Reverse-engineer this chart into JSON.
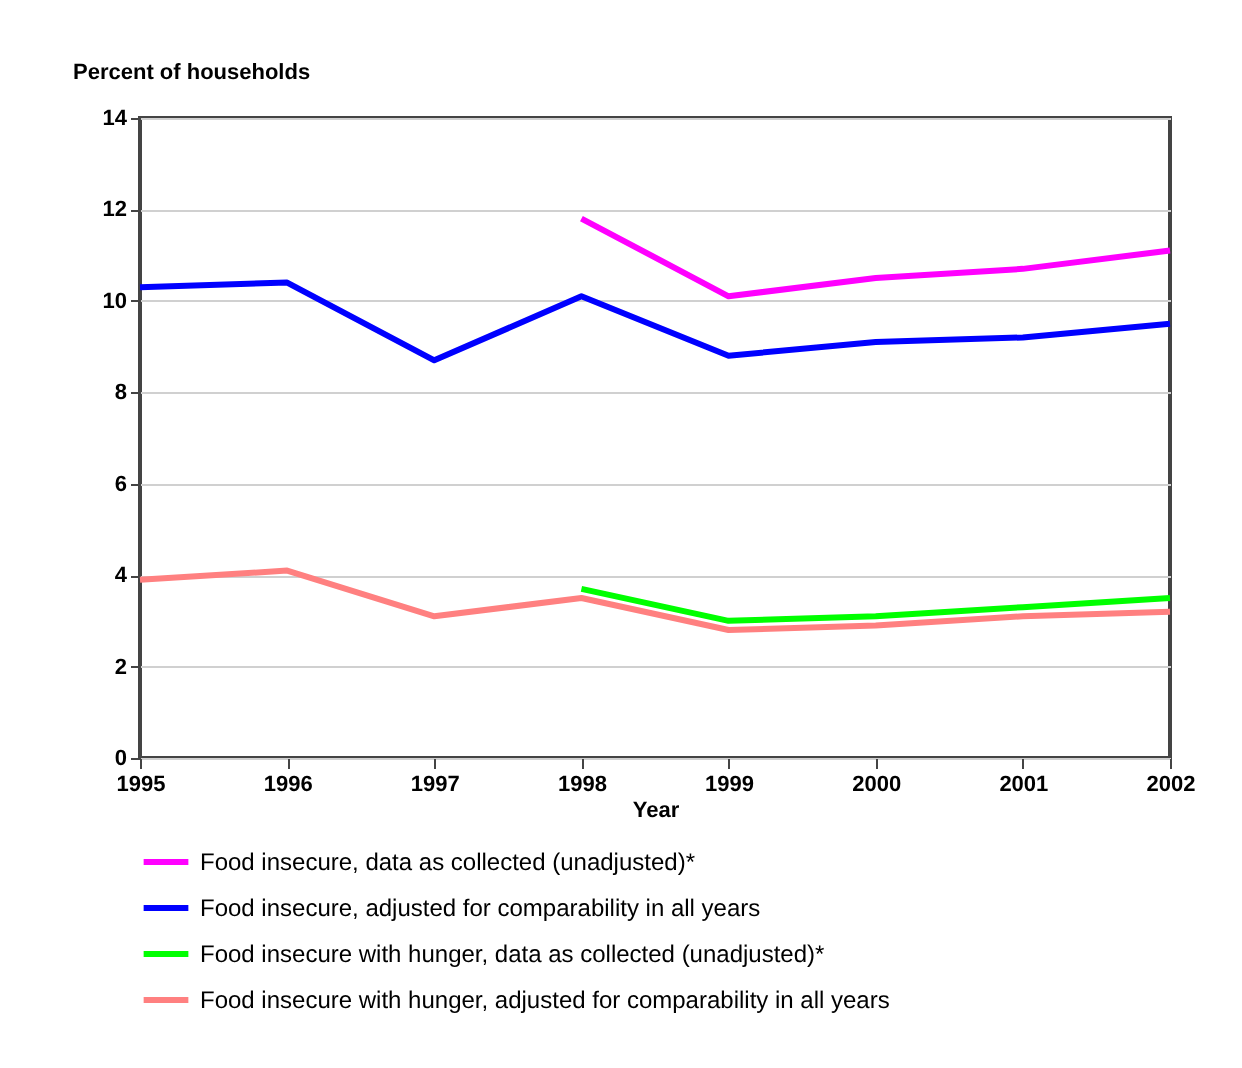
{
  "chart_data": {
    "type": "line",
    "ylabel": "Percent of households",
    "xlabel": "Year",
    "x": [
      1995,
      1996,
      1997,
      1998,
      1999,
      2000,
      2001,
      2002
    ],
    "xlim": [
      1995,
      2002
    ],
    "xticks": [
      1995,
      1996,
      1997,
      1998,
      1999,
      2000,
      2001,
      2002
    ],
    "ylim": [
      0,
      14
    ],
    "yticks": [
      0,
      2,
      4,
      6,
      8,
      10,
      12,
      14
    ],
    "grid": "y",
    "legend": "bottom",
    "marker": "none",
    "line_style": "solid",
    "series": [
      {
        "name": "Food insecure, data as collected (unadjusted)*",
        "color": "#ff00ff",
        "values": [
          null,
          null,
          null,
          11.8,
          10.1,
          10.5,
          10.7,
          11.1
        ]
      },
      {
        "name": "Food insecure, adjusted for comparability in all years",
        "color": "#0000ff",
        "values": [
          10.3,
          10.4,
          8.7,
          10.1,
          8.8,
          9.1,
          9.2,
          9.5
        ]
      },
      {
        "name": "Food insecure with hunger, data as collected (unadjusted)*",
        "color": "#00ff00",
        "values": [
          null,
          null,
          null,
          3.7,
          3.0,
          3.1,
          3.3,
          3.5
        ]
      },
      {
        "name": "Food insecure with hunger, adjusted for comparability in all years",
        "color": "#ff8080",
        "values": [
          3.9,
          4.1,
          3.1,
          3.5,
          2.8,
          2.9,
          3.1,
          3.2
        ]
      }
    ]
  }
}
